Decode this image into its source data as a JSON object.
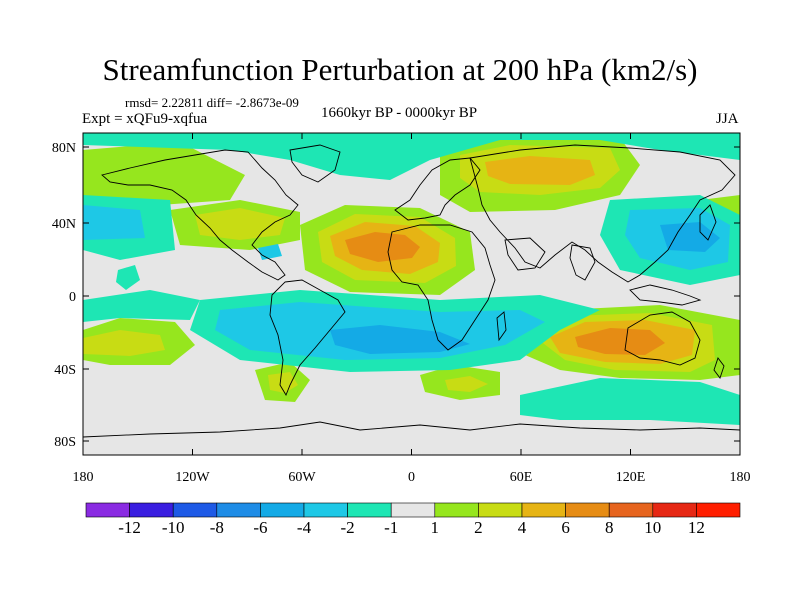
{
  "title": "Streamfunction Perturbation at 200 hPa (km2/s)",
  "stats": "rmsd= 2.22811 diff= -2.8673e-09",
  "experiment": "Expt = xQFu9-xqfua",
  "period": "1660kyr BP - 0000kyr BP",
  "season": "JJA",
  "axes": {
    "lat_labels": [
      "80N",
      "40N",
      "0",
      "40S",
      "80S"
    ],
    "lon_labels": [
      "180",
      "120W",
      "60W",
      "0",
      "60E",
      "120E",
      "180"
    ]
  },
  "colorbar": {
    "labels": [
      "-12",
      "-10",
      "-8",
      "-6",
      "-4",
      "-2",
      "-1",
      "1",
      "2",
      "4",
      "6",
      "8",
      "10",
      "12"
    ],
    "colors": [
      "#8a2be2",
      "#3a1ee0",
      "#1e5ae6",
      "#1e8ce6",
      "#14aae6",
      "#1ec8e6",
      "#1ee6b4",
      "#e6e6e6",
      "#96e61e",
      "#c8dc14",
      "#e6b414",
      "#e68c14",
      "#e6641e",
      "#e62814",
      "#ff1e00"
    ]
  },
  "colors": {
    "neutral": "#e6e6e6",
    "coastline": "#000000",
    "plus2": "#96e61e",
    "plus4": "#c8dc14",
    "plus6": "#e6b414",
    "plus8": "#e68c14",
    "minus1": "#1ee6b4",
    "minus2": "#1ec8e6",
    "minus4": "#14aae6"
  }
}
